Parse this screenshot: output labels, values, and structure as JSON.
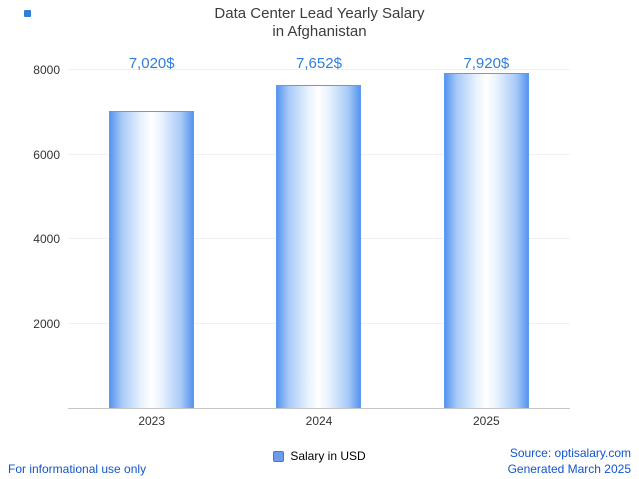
{
  "title": {
    "line1": "Data Center Lead Yearly Salary",
    "line2": "in Afghanistan"
  },
  "chart_data": {
    "type": "bar",
    "categories": [
      "2023",
      "2024",
      "2025"
    ],
    "values": [
      7020,
      7652,
      7920
    ],
    "value_labels": [
      "7,020$",
      "7,652$",
      "7,920$"
    ],
    "title": "Data Center Lead Yearly Salary in Afghanistan",
    "xlabel": "",
    "ylabel": "",
    "ylim": [
      0,
      8000
    ],
    "yticks": [
      2000,
      4000,
      6000,
      8000
    ],
    "grid": "faint-horizontal",
    "legend": "Salary in USD",
    "legend_position": "bottom-center",
    "bar_color_edge": "#5795ee",
    "bar_color_center": "#ffffff",
    "label_color": "#2f7ed8"
  },
  "footer": {
    "left": "For informational use only",
    "source": "Source: optisalary.com",
    "generated": "Generated March 2025"
  }
}
